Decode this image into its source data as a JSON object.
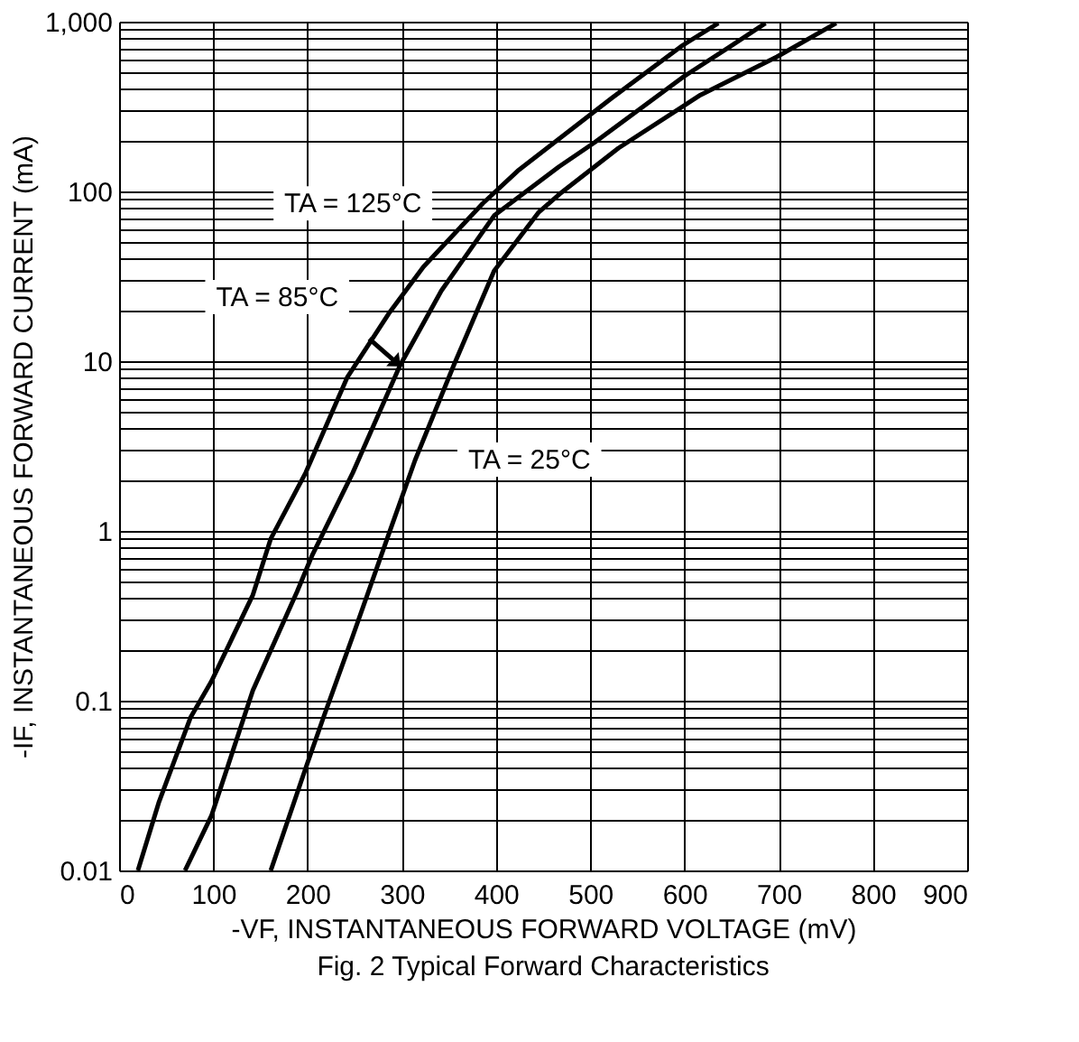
{
  "chart_data": {
    "type": "line",
    "title": "Fig. 2 Typical Forward Characteristics",
    "xlabel": "-VF, INSTANTANEOUS FORWARD VOLTAGE (mV)",
    "ylabel": "-IF, INSTANTANEOUS FORWARD CURRENT (mA)",
    "series": [
      {
        "color": "#000000",
        "x": [
          20,
          42,
          76,
          98,
          142,
          161,
          198,
          242,
          286,
          323,
          386,
          423,
          523,
          598,
          636
        ],
        "values": [
          0.01,
          0.025,
          0.08,
          0.13,
          0.42,
          0.9,
          2.2,
          8,
          19,
          36,
          85,
          132,
          355,
          725,
          980
        ]
      },
      {
        "color": "#000000",
        "x": [
          70,
          98,
          142,
          189,
          205,
          248,
          298,
          342,
          398,
          467,
          505,
          598,
          648,
          686
        ],
        "values": [
          0.01,
          0.021,
          0.115,
          0.44,
          0.72,
          2.2,
          9.4,
          26,
          72,
          140,
          195,
          470,
          710,
          980
        ]
      },
      {
        "color": "#000000",
        "x": [
          161,
          198,
          217,
          248,
          286,
          314,
          355,
          398,
          445,
          467,
          530,
          617,
          698,
          761
        ],
        "values": [
          0.01,
          0.04,
          0.08,
          0.24,
          0.95,
          2.6,
          9.4,
          34,
          75,
          96,
          180,
          370,
          620,
          980
        ]
      }
    ],
    "annotations": [
      "TA = 125°C",
      "TA = 85°C",
      "TA = 25°C"
    ],
    "xlim": [
      0,
      900
    ],
    "xticks": [
      0,
      100,
      200,
      300,
      400,
      500,
      600,
      700,
      800,
      900
    ],
    "ylim": [
      0.01,
      1000
    ],
    "log": true,
    "yticks": [
      {
        "value": 0.01,
        "label": "0.01"
      },
      {
        "value": 0.02,
        "label": null
      },
      {
        "value": 0.03,
        "label": null
      },
      {
        "value": 0.04,
        "label": null
      },
      {
        "value": 0.05,
        "label": null
      },
      {
        "value": 0.06,
        "label": null
      },
      {
        "value": 0.07,
        "label": null
      },
      {
        "value": 0.08,
        "label": null
      },
      {
        "value": 0.09,
        "label": null
      },
      {
        "value": 0.1,
        "label": "0.1"
      },
      {
        "value": 0.2,
        "label": null
      },
      {
        "value": 0.3,
        "label": null
      },
      {
        "value": 0.4,
        "label": null
      },
      {
        "value": 0.5,
        "label": null
      },
      {
        "value": 0.6,
        "label": null
      },
      {
        "value": 0.7,
        "label": null
      },
      {
        "value": 0.8,
        "label": null
      },
      {
        "value": 0.9,
        "label": null
      },
      {
        "value": 1,
        "label": "1"
      },
      {
        "value": 2,
        "label": null
      },
      {
        "value": 3,
        "label": null
      },
      {
        "value": 4,
        "label": null
      },
      {
        "value": 5,
        "label": null
      },
      {
        "value": 6,
        "label": null
      },
      {
        "value": 7,
        "label": null
      },
      {
        "value": 8,
        "label": null
      },
      {
        "value": 9,
        "label": null
      },
      {
        "value": 10,
        "label": "10"
      },
      {
        "value": 20,
        "label": null
      },
      {
        "value": 30,
        "label": null
      },
      {
        "value": 40,
        "label": null
      },
      {
        "value": 50,
        "label": null
      },
      {
        "value": 60,
        "label": null
      },
      {
        "value": 70,
        "label": null
      },
      {
        "value": 80,
        "label": null
      },
      {
        "value": 90,
        "label": null
      },
      {
        "value": 100,
        "label": "100"
      },
      {
        "value": 200,
        "label": null
      },
      {
        "value": 300,
        "label": null
      },
      {
        "value": 400,
        "label": null
      },
      {
        "value": 500,
        "label": null
      },
      {
        "value": 600,
        "label": null
      },
      {
        "value": 700,
        "label": null
      },
      {
        "value": 800,
        "label": null
      },
      {
        "value": 900,
        "label": null
      },
      {
        "value": 1000,
        "label": "1,000"
      }
    ],
    "grid": true,
    "marker": "none",
    "line_style": "solid"
  }
}
